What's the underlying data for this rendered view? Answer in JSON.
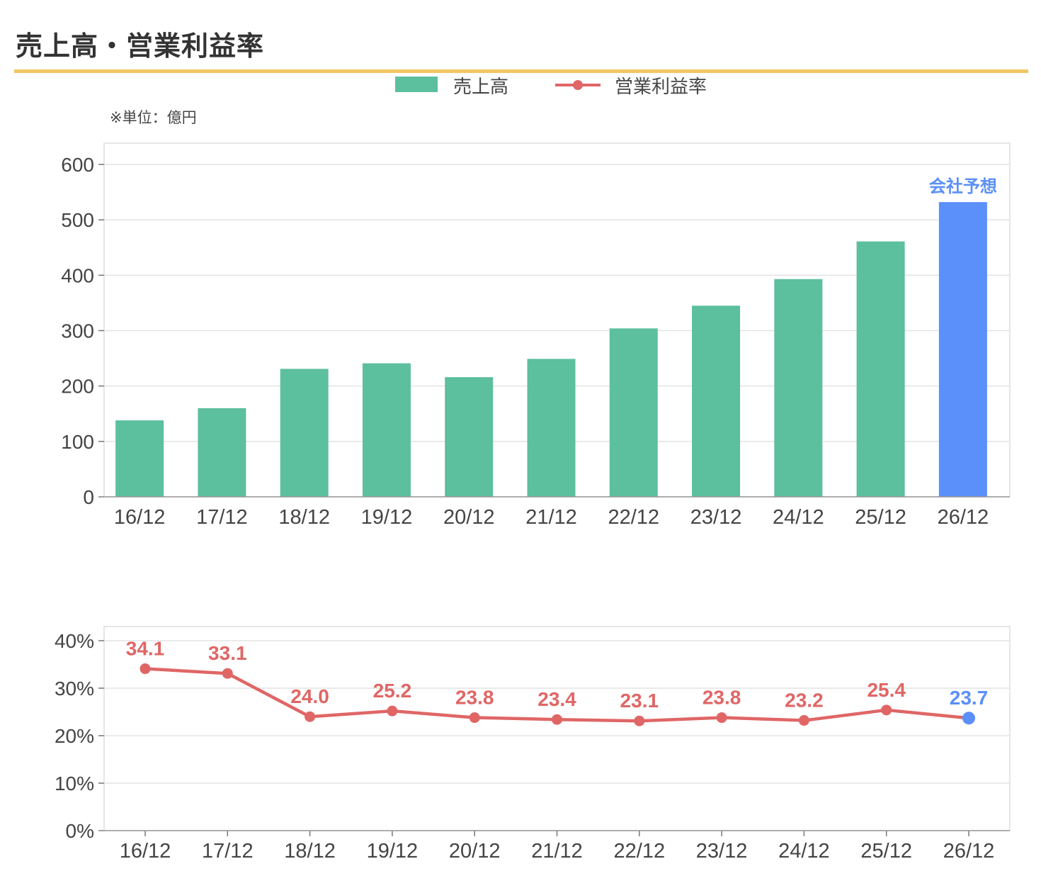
{
  "title": "売上高・営業利益率",
  "legend": {
    "bar_label": "売上高",
    "line_label": "営業利益率"
  },
  "unit_note": "※単位：億円",
  "forecast_label": "会社予想",
  "colors": {
    "bar": "#5cbf9d",
    "forecast": "#5b8ff9",
    "line": "#e06666",
    "accent": "#f2c660"
  },
  "chart_data": [
    {
      "type": "bar",
      "title": "",
      "xlabel": "",
      "ylabel": "",
      "categories": [
        "16/12",
        "17/12",
        "18/12",
        "19/12",
        "20/12",
        "21/12",
        "22/12",
        "23/12",
        "24/12",
        "25/12",
        "26/12"
      ],
      "series": [
        {
          "name": "売上高",
          "values": [
            138,
            160,
            231,
            241,
            216,
            249,
            304,
            345,
            393,
            461,
            532
          ]
        }
      ],
      "forecast_index": 10,
      "ylim": [
        0,
        600
      ],
      "yticks": [
        "0",
        "100",
        "200",
        "300",
        "400",
        "500",
        "600"
      ],
      "grid": true
    },
    {
      "type": "line",
      "title": "",
      "xlabel": "",
      "ylabel": "",
      "categories": [
        "16/12",
        "17/12",
        "18/12",
        "19/12",
        "20/12",
        "21/12",
        "22/12",
        "23/12",
        "24/12",
        "25/12",
        "26/12"
      ],
      "series": [
        {
          "name": "営業利益率",
          "values": [
            34.1,
            33.1,
            24.0,
            25.2,
            23.8,
            23.4,
            23.1,
            23.8,
            23.2,
            25.4,
            23.7
          ]
        }
      ],
      "data_labels": [
        "34.1",
        "33.1",
        "24.0",
        "25.2",
        "23.8",
        "23.4",
        "23.1",
        "23.8",
        "23.2",
        "25.4",
        "23.7"
      ],
      "forecast_index": 10,
      "ylim": [
        0,
        40
      ],
      "yticks": [
        "0%",
        "10%",
        "20%",
        "30%",
        "40%"
      ],
      "grid": true
    }
  ]
}
